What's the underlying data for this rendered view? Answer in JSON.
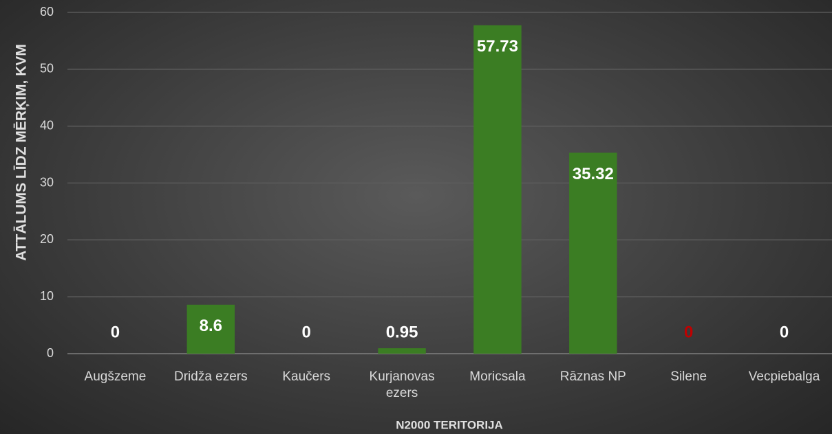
{
  "chart_data": {
    "type": "bar",
    "y_axis_label": "ATTĀLUMS LĪDZ MĒRĶIM, KVM",
    "x_axis_label": "N2000 TERITORIJA",
    "categories": [
      "Augšzeme",
      "Dridža ezers",
      "Kaučers",
      "Kurjanovas ezers",
      "Moricsala",
      "Rāznas NP",
      "Silene",
      "Vecpiebalga"
    ],
    "values": [
      0,
      8.6,
      0,
      0.95,
      57.73,
      35.32,
      0,
      0
    ],
    "value_label_colors": [
      "#ffffff",
      "#ffffff",
      "#ffffff",
      "#ffffff",
      "#ffffff",
      "#ffffff",
      "#c00000",
      "#ffffff"
    ],
    "color": "#3b7d23",
    "ylim": [
      0,
      60
    ],
    "yticks": [
      0,
      10,
      20,
      30,
      40,
      50,
      60
    ],
    "grid": true
  }
}
